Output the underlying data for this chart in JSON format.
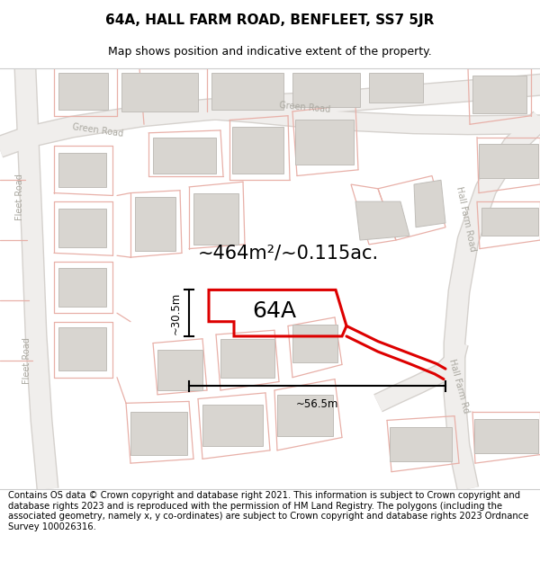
{
  "title": "64A, HALL FARM ROAD, BENFLEET, SS7 5JR",
  "subtitle": "Map shows position and indicative extent of the property.",
  "footer": "Contains OS data © Crown copyright and database right 2021. This information is subject to Crown copyright and database rights 2023 and is reproduced with the permission of HM Land Registry. The polygons (including the associated geometry, namely x, y co-ordinates) are subject to Crown copyright and database rights 2023 Ordnance Survey 100026316.",
  "area_text": "~464m²/~0.115ac.",
  "label": "64A",
  "dim_width": "~56.5m",
  "dim_height": "~30.5m",
  "map_bg": "#ffffff",
  "parcel_color": "#e8b0a8",
  "building_fill": "#d8d5d0",
  "building_stroke": "#c0bdb8",
  "road_fill": "#e8e4e0",
  "road_edge": "#d0ccc8",
  "highlight_red": "#dd0000",
  "road_label_color": "#aaa8a0",
  "title_fontsize": 11,
  "subtitle_fontsize": 9,
  "footer_fontsize": 7.2,
  "label_fontsize": 18,
  "area_fontsize": 15
}
